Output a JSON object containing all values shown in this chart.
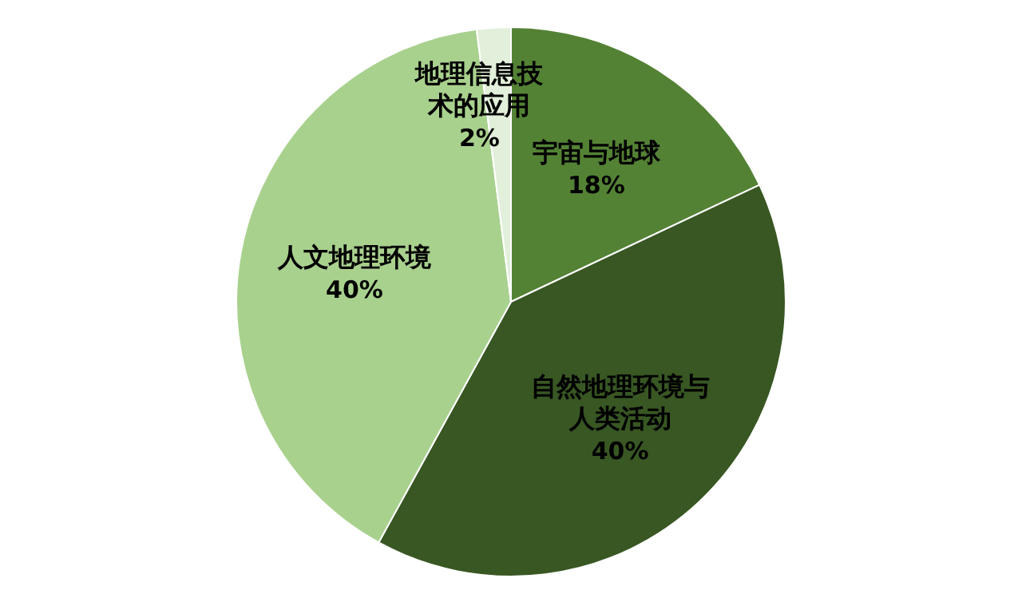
{
  "chart_data": {
    "type": "pie",
    "categories": [
      "宇宙与地球",
      "自然地理环境与人类活动",
      "人文地理环境",
      "地理信息技术的应用"
    ],
    "values": [
      18,
      40,
      40,
      2
    ],
    "colors": [
      "#548235",
      "#385723",
      "#a9d18e",
      "#e2efda"
    ],
    "value_labels": [
      "18%",
      "40%",
      "40%",
      "2%"
    ]
  }
}
